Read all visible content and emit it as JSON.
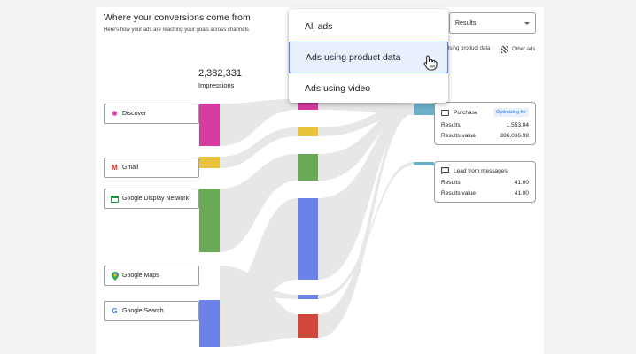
{
  "header": {
    "title": "Where your conversions come from",
    "subtitle": "Here's how your ads are reaching your goals across channels"
  },
  "impressions": {
    "value": "2,382,331",
    "label": "Impressions"
  },
  "metric_select": {
    "value": "Results"
  },
  "legend": {
    "product_data": "Using product data",
    "other_ads": "Other ads"
  },
  "dropdown": {
    "items": [
      {
        "label": "All ads"
      },
      {
        "label": "Ads using product data",
        "selected": true
      },
      {
        "label": "Ads using video"
      }
    ]
  },
  "channels": [
    {
      "label": "Discover",
      "icon": "discover-icon"
    },
    {
      "label": "Gmail",
      "icon": "gmail-icon"
    },
    {
      "label": "Google Display Network",
      "icon": "display-icon"
    },
    {
      "label": "Google Maps",
      "icon": "maps-pin-icon"
    },
    {
      "label": "Google Search",
      "icon": "google-g-icon"
    }
  ],
  "results": [
    {
      "name": "Purchase",
      "badge": "Optimizing for",
      "rows": [
        {
          "label": "Results",
          "value": "1,553.04"
        },
        {
          "label": "Results value",
          "value": "386,036.98"
        }
      ]
    },
    {
      "name": "Lead from messages",
      "rows": [
        {
          "label": "Results",
          "value": "41.00"
        },
        {
          "label": "Results value",
          "value": "41.00"
        }
      ]
    }
  ],
  "colors": {
    "discover": "#d63ba0",
    "gmail": "#e8c33a",
    "display": "#6aaa57",
    "search": "#6b82ea",
    "video": "#d2473c",
    "result": "#6aafc8",
    "flow": "#e8e8e8"
  }
}
